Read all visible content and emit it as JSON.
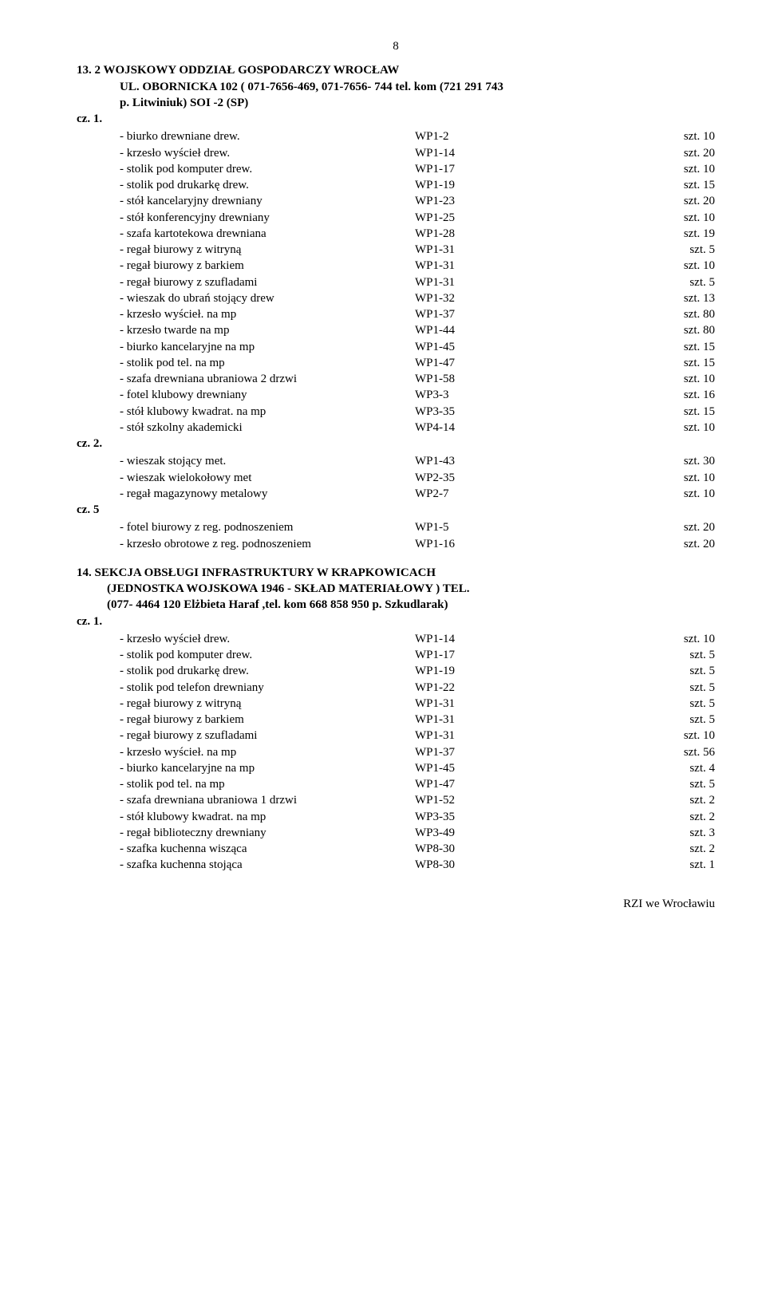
{
  "page": {
    "number": "8"
  },
  "section13": {
    "title_l1": "13.  2 WOJSKOWY ODDZIAŁ GOSPODARCZY   WROCŁAW",
    "title_l2": "UL. OBORNICKA 102 ( 071-7656-469, 071-7656- 744 tel.  kom  (721 291 743",
    "title_l3": "p. Litwiniuk) SOI -2  (SP)",
    "cz1_label": "cz. 1.",
    "cz1": [
      {
        "label": "- biurko drewniane drew.",
        "code": "WP1-2",
        "qty": "szt. 10"
      },
      {
        "label": "- krzesło wyścieł drew.",
        "code": "WP1-14",
        "qty": "szt. 20"
      },
      {
        "label": "- stolik pod komputer drew.",
        "code": "WP1-17",
        "qty": "szt. 10"
      },
      {
        "label": "- stolik pod drukarkę drew.",
        "code": "WP1-19",
        "qty": "szt. 15"
      },
      {
        "label": "- stół kancelaryjny drewniany",
        "code": "WP1-23",
        "qty": "szt. 20"
      },
      {
        "label": "- stół konferencyjny drewniany",
        "code": "WP1-25",
        "qty": "szt. 10"
      },
      {
        "label": "- szafa kartotekowa drewniana",
        "code": "WP1-28",
        "qty": "szt. 19"
      },
      {
        "label": "- regał biurowy z witryną",
        "code": "WP1-31",
        "qty": "szt. 5"
      },
      {
        "label": "- regał biurowy z barkiem",
        "code": "WP1-31",
        "qty": "szt. 10"
      },
      {
        "label": "- regał biurowy z szufladami",
        "code": "WP1-31",
        "qty": "szt. 5"
      },
      {
        "label": "- wieszak do ubrań stojący drew",
        "code": "WP1-32",
        "qty": "szt. 13"
      },
      {
        "label": "- krzesło wyścieł. na mp",
        "code": "WP1-37",
        "qty": "szt. 80"
      },
      {
        "label": "- krzesło twarde na mp",
        "code": "WP1-44",
        "qty": "szt. 80"
      },
      {
        "label": "- biurko kancelaryjne na mp",
        "code": "WP1-45",
        "qty": "szt. 15"
      },
      {
        "label": "- stolik pod tel. na mp",
        "code": "WP1-47",
        "qty": "szt. 15"
      },
      {
        "label": "- szafa  drewniana ubraniowa 2 drzwi",
        "code": "WP1-58",
        "qty": "szt. 10"
      },
      {
        "label": "- fotel klubowy drewniany",
        "code": "WP3-3",
        "qty": "szt. 16"
      },
      {
        "label": "-  stół klubowy kwadrat. na mp",
        "code": "WP3-35",
        "qty": "szt. 15"
      },
      {
        "label": "- stół szkolny akademicki",
        "code": "WP4-14",
        "qty": "szt. 10"
      }
    ],
    "cz2_label": "cz. 2.",
    "cz2": [
      {
        "label": "-  wieszak stojący met.",
        "code": "WP1-43",
        "qty": "szt. 30"
      },
      {
        "label": "-  wieszak wielokołowy met",
        "code": "WP2-35",
        "qty": "szt. 10"
      },
      {
        "label": "- regał magazynowy metalowy",
        "code": "WP2-7",
        "qty": "szt. 10"
      }
    ],
    "cz5_label": "cz. 5",
    "cz5": [
      {
        "label": "-  fotel biurowy z reg. podnoszeniem",
        "code": "WP1-5",
        "qty": "szt. 20"
      },
      {
        "label": "-  krzesło obrotowe z reg. podnoszeniem",
        "code": "WP1-16",
        "qty": "szt. 20"
      }
    ]
  },
  "section14": {
    "title_l1": "14.   SEKCJA OBSŁUGI INFRASTRUKTURY  W  KRAPKOWICACH",
    "title_l2": "(JEDNOSTKA WOJSKOWA 1946 - SKŁAD MATERIAŁOWY ) TEL.",
    "title_l3": "(077-  4464 120 Elżbieta Haraf ,tel. kom 668 858 950   p. Szkudlarak)",
    "cz1_label": "cz. 1.",
    "cz1": [
      {
        "label": "- krzesło wyścieł drew.",
        "code": "WP1-14",
        "qty": "szt. 10"
      },
      {
        "label": "- stolik pod komputer drew.",
        "code": "WP1-17",
        "qty": "szt. 5"
      },
      {
        "label": "- stolik pod drukarkę drew.",
        "code": "WP1-19",
        "qty": "szt. 5"
      },
      {
        "label": "- stolik pod telefon drewniany",
        "code": "WP1-22",
        "qty": "szt. 5"
      },
      {
        "label": "-  regał biurowy z witryną",
        "code": "WP1-31",
        "qty": "szt. 5"
      },
      {
        "label": "- regał biurowy z barkiem",
        "code": "WP1-31",
        "qty": "szt. 5"
      },
      {
        "label": "- regał biurowy z szufladami",
        "code": "WP1-31",
        "qty": "szt. 10"
      },
      {
        "label": "-  krzesło wyścieł. na mp",
        "code": "WP1-37",
        "qty": "szt. 56"
      },
      {
        "label": "-  biurko kancelaryjne na mp",
        "code": "WP1-45",
        "qty": "szt. 4"
      },
      {
        "label": "- stolik pod tel. na mp",
        "code": "WP1-47",
        "qty": "szt. 5"
      },
      {
        "label": "- szafa  drewniana ubraniowa 1 drzwi",
        "code": "WP1-52",
        "qty": "szt. 2"
      },
      {
        "label": "-  stół klubowy kwadrat. na mp",
        "code": "WP3-35",
        "qty": "szt. 2"
      },
      {
        "label": "-  regał biblioteczny drewniany",
        "code": "WP3-49",
        "qty": "szt. 3"
      },
      {
        "label": "-  szafka kuchenna wisząca",
        "code": "WP8-30",
        "qty": "szt. 2"
      },
      {
        "label": "-  szafka kuchenna stojąca",
        "code": "WP8-30",
        "qty": "szt. 1"
      }
    ]
  },
  "footer": {
    "text": "RZI we Wrocławiu"
  }
}
